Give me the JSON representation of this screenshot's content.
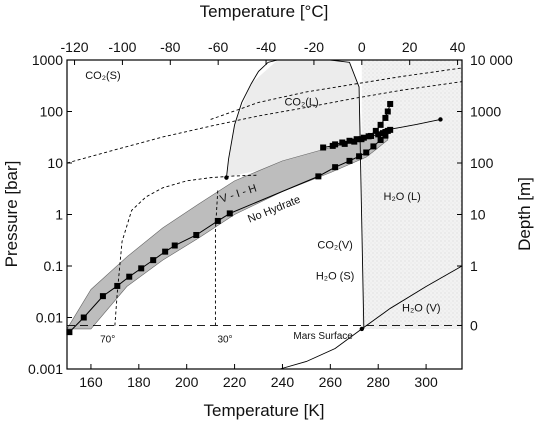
{
  "chart_data": {
    "type": "line",
    "title": "",
    "xlabel_bottom": "Temperature [K]",
    "xlabel_top": "Temperature [°C]",
    "ylabel_left": "Pressure [bar]",
    "ylabel_right": "Depth [m]",
    "y_scale": "log",
    "xlim": [
      150,
      315
    ],
    "ylim": [
      0.001,
      1000
    ],
    "x_ticks_bottom": [
      "160",
      "180",
      "200",
      "220",
      "240",
      "260",
      "280",
      "300"
    ],
    "x_tick_values_bottom": [
      160,
      180,
      200,
      220,
      240,
      260,
      280,
      300
    ],
    "x_ticks_top": [
      "-120",
      "-100",
      "-80",
      "-60",
      "-40",
      "-20",
      "0",
      "20",
      "40"
    ],
    "x_tick_values_top_K": [
      153.15,
      173.15,
      193.15,
      213.15,
      233.15,
      253.15,
      273.15,
      293.15,
      313.15
    ],
    "y_ticks_left": [
      "0.001",
      "0.01",
      "0.1",
      "1",
      "10",
      "100",
      "1000"
    ],
    "y_tick_values_left": [
      0.001,
      0.01,
      0.1,
      1,
      10,
      100,
      1000
    ],
    "y_ticks_right": [
      "0",
      "1",
      "10",
      "100",
      "1000",
      "10 000"
    ],
    "y_tick_pressures_right": [
      0.007,
      0.1,
      1,
      10,
      100,
      1000
    ],
    "region_labels": [
      {
        "text": "CO₂(S)",
        "x": 165,
        "y": 430
      },
      {
        "text": "CO₂(L)",
        "x": 248,
        "y": 130
      },
      {
        "text": "V - I - H",
        "x": 222,
        "y": 2.2
      },
      {
        "text": "No Hydrate",
        "x": 237,
        "y": 1.1
      },
      {
        "text": "H₂O (L)",
        "x": 290,
        "y": 1.9
      },
      {
        "text": "CO₂(V)",
        "x": 262,
        "y": 0.22
      },
      {
        "text": "H₂O (S)",
        "x": 262,
        "y": 0.055
      },
      {
        "text": "H₂O (V)",
        "x": 298,
        "y": 0.013
      },
      {
        "text": "Mars Surface",
        "x": 257,
        "y": 0.0038
      },
      {
        "text": "70°",
        "x": 167,
        "y": 0.0033
      },
      {
        "text": "30°",
        "x": 216,
        "y": 0.0033
      }
    ],
    "series": [
      {
        "style": "marker-square",
        "x": [
          151,
          157,
          165,
          171,
          176,
          181,
          186,
          191,
          195,
          204,
          213,
          218,
          255,
          262,
          268,
          272,
          275,
          278,
          281,
          283
        ],
        "y": [
          0.0052,
          0.01,
          0.026,
          0.041,
          0.062,
          0.09,
          0.13,
          0.19,
          0.25,
          0.4,
          0.75,
          1.05,
          5.5,
          8.3,
          11,
          13.5,
          16,
          21,
          28,
          34
        ]
      },
      {
        "style": "marker-square",
        "x": [
          262,
          265,
          268,
          271,
          274,
          277,
          280,
          282,
          283,
          284,
          285
        ],
        "y": [
          23,
          25,
          27,
          29,
          31,
          33.5,
          36,
          38,
          40,
          42,
          44
        ]
      },
      {
        "style": "marker-square",
        "x": [
          257,
          261,
          266,
          270,
          273,
          276,
          279,
          281,
          283,
          284,
          285
        ],
        "y": [
          20,
          21.5,
          23.5,
          26,
          29,
          33,
          42,
          55,
          75,
          100,
          140
        ]
      },
      {
        "style": "solid",
        "x": [
          281,
          286,
          296,
          306
        ],
        "y": [
          40,
          46,
          56,
          70
        ]
      },
      {
        "style": "solid",
        "x": [
          216.6,
          217.5,
          220,
          223,
          227,
          230,
          234,
          238
        ],
        "y": [
          5.2,
          12,
          55,
          150,
          350,
          600,
          900,
          1000
        ]
      },
      {
        "style": "solid",
        "x": [
          260,
          268,
          272,
          274
        ],
        "y": [
          1000,
          900,
          300,
          0.006
        ]
      },
      {
        "style": "solid",
        "x": [
          239,
          250,
          262,
          273.15,
          285,
          300,
          315
        ],
        "y": [
          0.001,
          0.0014,
          0.0025,
          0.006,
          0.015,
          0.04,
          0.1
        ]
      },
      {
        "style": "dashed",
        "x": [
          150,
          170,
          190,
          210,
          230,
          250,
          270,
          290,
          315
        ],
        "y": [
          10,
          18,
          32,
          52,
          82,
          120,
          180,
          260,
          380
        ]
      },
      {
        "style": "dashed",
        "x": [
          210,
          230,
          250,
          270,
          290,
          315
        ],
        "y": [
          70,
          150,
          240,
          340,
          480,
          700
        ]
      },
      {
        "style": "dashed",
        "x": [
          170,
          171,
          173,
          177,
          183,
          190,
          200,
          210,
          220,
          230
        ],
        "y": [
          0.007,
          0.03,
          0.3,
          1.2,
          2.2,
          3.3,
          4.5,
          5.2,
          5.6,
          5.8
        ]
      },
      {
        "style": "dashed",
        "x": [
          212,
          212,
          213
        ],
        "y": [
          0.007,
          0.5,
          3
        ]
      },
      {
        "style": "dashed-long",
        "x": [
          150,
          315
        ],
        "y": [
          0.007,
          0.007
        ]
      }
    ],
    "hydrate_band": {
      "upper": {
        "x": [
          150,
          160,
          175,
          190,
          205,
          220,
          240,
          260,
          275,
          284
        ],
        "y": [
          0.006,
          0.035,
          0.15,
          0.55,
          1.6,
          4.5,
          11,
          20,
          30,
          42
        ]
      },
      "lower": {
        "x": [
          150,
          160,
          175,
          190,
          205,
          220,
          240,
          260,
          275,
          284
        ],
        "y": [
          0.006,
          0.006,
          0.04,
          0.13,
          0.35,
          1.0,
          2.8,
          6.5,
          13,
          28
        ]
      }
    }
  }
}
